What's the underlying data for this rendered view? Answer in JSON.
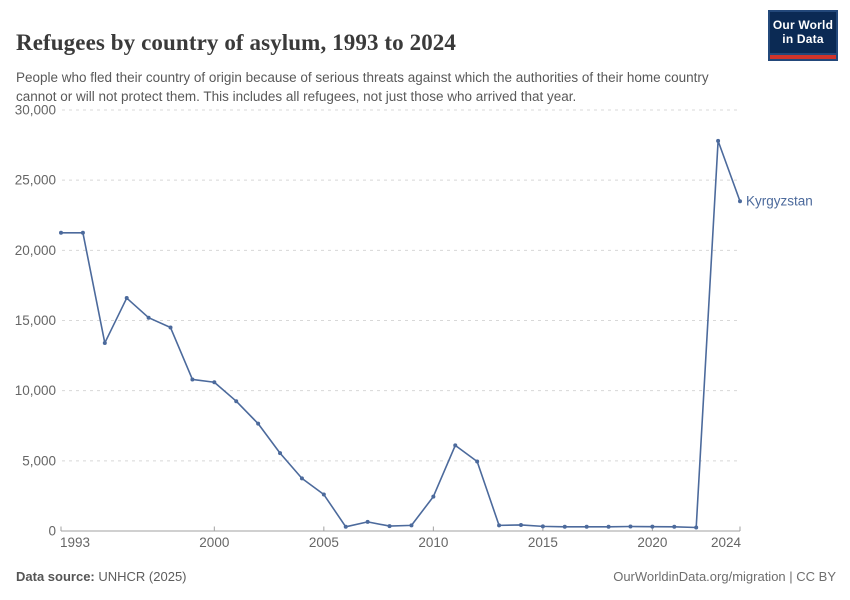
{
  "header": {
    "title": "Refugees by country of asylum, 1993 to 2024",
    "subtitle": "People who fled their country of origin because of serious threats against which the authorities of their home country cannot or will not protect them. This includes all refugees, not just those who arrived that year.",
    "logo": {
      "line1": "Our World",
      "line2": "in Data"
    }
  },
  "chart_data": {
    "type": "line",
    "title": "Refugees by country of asylum, 1993 to 2024",
    "xlabel": "",
    "ylabel": "",
    "ylim": [
      0,
      30000
    ],
    "yticks": [
      0,
      5000,
      10000,
      15000,
      20000,
      25000,
      30000
    ],
    "xticks": [
      1993,
      2000,
      2005,
      2010,
      2015,
      2020,
      2024
    ],
    "grid": "horizontal-dashed",
    "legend_position": "end-of-line-label",
    "x": [
      1993,
      1994,
      1995,
      1996,
      1997,
      1998,
      1999,
      2000,
      2001,
      2002,
      2003,
      2004,
      2005,
      2006,
      2007,
      2008,
      2009,
      2010,
      2011,
      2012,
      2013,
      2014,
      2015,
      2016,
      2017,
      2018,
      2019,
      2020,
      2021,
      2022,
      2023,
      2024
    ],
    "series": [
      {
        "name": "Kyrgyzstan",
        "color": "#4c6a9c",
        "values": [
          21250,
          21250,
          13400,
          16600,
          15200,
          14500,
          10800,
          10600,
          9250,
          7650,
          5550,
          3750,
          2600,
          300,
          650,
          350,
          400,
          2450,
          6100,
          4950,
          400,
          430,
          330,
          300,
          300,
          300,
          320,
          310,
          300,
          250,
          27800,
          23500
        ]
      }
    ]
  },
  "footer": {
    "datasource_label": "Data source:",
    "datasource_value": "UNHCR (2025)",
    "attribution": "OurWorldinData.org/migration | CC BY"
  },
  "colors": {
    "line": "#4c6a9c",
    "grid": "#d8d8d8",
    "axis": "#a1a1a1",
    "tick_label": "#666666",
    "logo_bg": "#0b2a54",
    "logo_border": "#23487a",
    "logo_red": "#d1342a"
  }
}
